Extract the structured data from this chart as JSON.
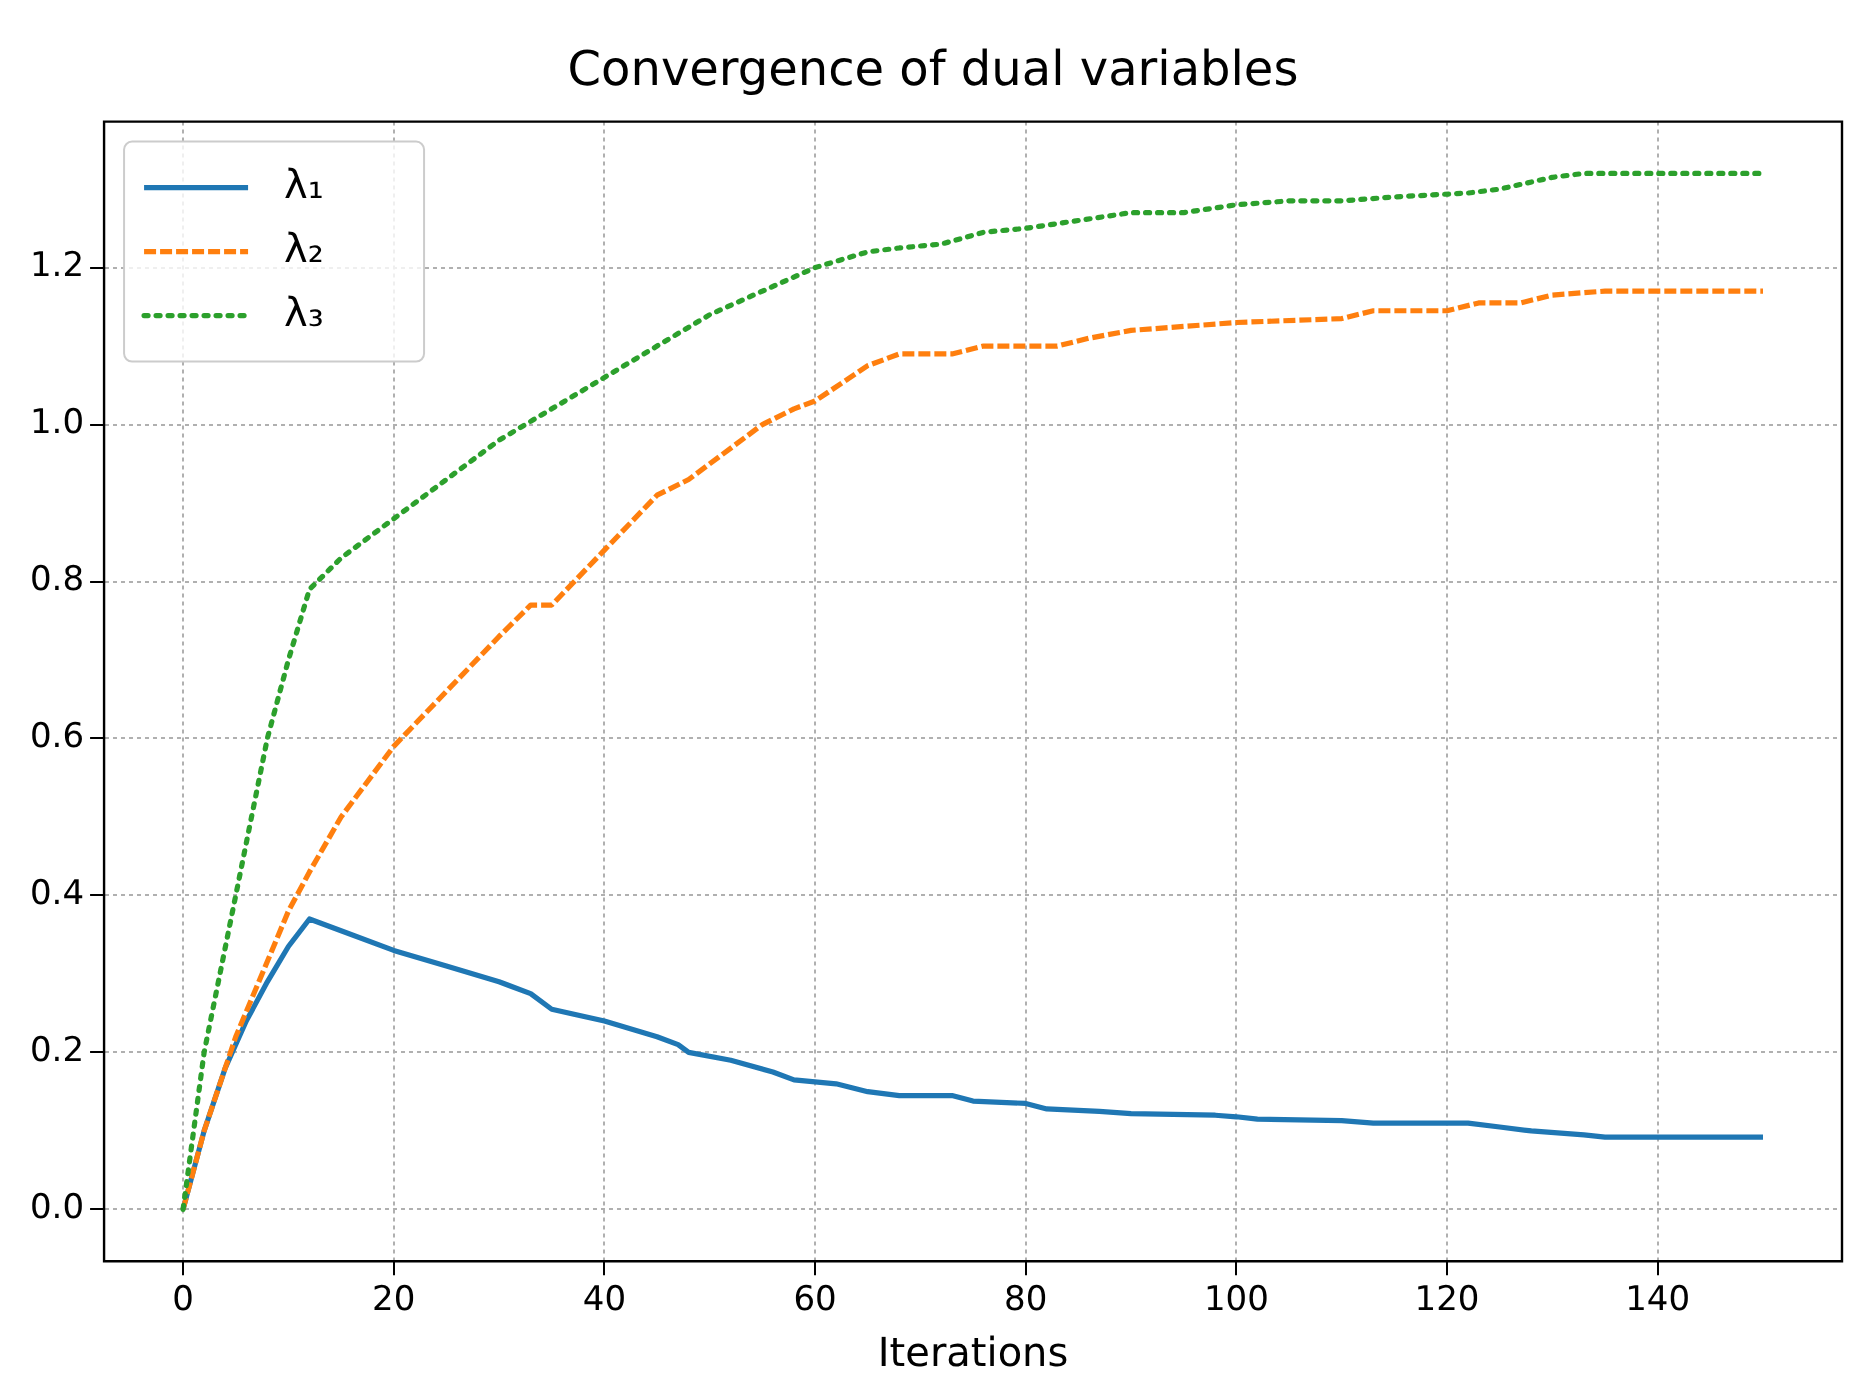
{
  "chart_data": {
    "type": "line",
    "title": "Convergence of dual variables",
    "xlabel": "Iterations",
    "xlim": [
      -7.5,
      157.5
    ],
    "ylim": [
      -0.066,
      1.386
    ],
    "xticks": [
      0,
      20,
      40,
      60,
      80,
      100,
      120,
      140
    ],
    "yticks": [
      {
        "value": 0,
        "label": "0.0"
      },
      {
        "value": 0.2,
        "label": "0.2"
      },
      {
        "value": 0.4,
        "label": "0.4"
      },
      {
        "value": 0.6,
        "label": "0.6"
      },
      {
        "value": 0.8,
        "label": "0.8"
      },
      {
        "value": 1,
        "label": "1.0"
      },
      {
        "value": 1.2,
        "label": "1.2"
      }
    ],
    "grid": true,
    "legend": "top left",
    "marker": "none",
    "series": [
      {
        "name": "λ₁",
        "color": "#1f77b4",
        "line_style": "solid",
        "x": [
          0,
          2,
          4,
          6,
          8,
          10,
          12,
          15,
          20,
          25,
          30,
          33,
          35,
          40,
          45,
          47,
          48,
          52,
          56,
          58,
          62,
          65,
          68,
          73,
          75,
          80,
          82,
          87,
          90,
          98,
          100,
          102,
          110,
          113,
          122,
          125,
          128,
          133,
          135,
          150
        ],
        "values": [
          0,
          0.1,
          0.18,
          0.24,
          0.29,
          0.335,
          0.37,
          0.355,
          0.33,
          0.31,
          0.29,
          0.275,
          0.255,
          0.24,
          0.22,
          0.21,
          0.2,
          0.19,
          0.175,
          0.165,
          0.16,
          0.15,
          0.145,
          0.145,
          0.138,
          0.135,
          0.128,
          0.125,
          0.122,
          0.12,
          0.118,
          0.115,
          0.113,
          0.11,
          0.11,
          0.105,
          0.1,
          0.095,
          0.092,
          0.092
        ]
      },
      {
        "name": "λ₂",
        "color": "#ff7f0e",
        "line_style": "dashed",
        "x": [
          0,
          2,
          5,
          10,
          12,
          15,
          20,
          25,
          30,
          33,
          35,
          40,
          45,
          48,
          55,
          58,
          60,
          65,
          68,
          73,
          76,
          83,
          86,
          90,
          95,
          100,
          110,
          113,
          120,
          123,
          127,
          130,
          135,
          150
        ],
        "values": [
          0,
          0.1,
          0.22,
          0.38,
          0.43,
          0.5,
          0.59,
          0.66,
          0.73,
          0.77,
          0.77,
          0.84,
          0.91,
          0.93,
          1.0,
          1.02,
          1.03,
          1.075,
          1.09,
          1.09,
          1.1,
          1.1,
          1.11,
          1.12,
          1.125,
          1.13,
          1.135,
          1.145,
          1.145,
          1.155,
          1.155,
          1.165,
          1.17,
          1.17
        ]
      },
      {
        "name": "λ₃",
        "color": "#2ca02c",
        "line_style": "dotted",
        "x": [
          0,
          2,
          5,
          8,
          10,
          12,
          15,
          20,
          25,
          30,
          35,
          40,
          45,
          50,
          55,
          60,
          65,
          68,
          72,
          76,
          80,
          85,
          90,
          95,
          100,
          105,
          110,
          115,
          122,
          125,
          130,
          133,
          150
        ],
        "values": [
          0,
          0.2,
          0.4,
          0.6,
          0.7,
          0.79,
          0.83,
          0.88,
          0.93,
          0.98,
          1.02,
          1.06,
          1.1,
          1.14,
          1.17,
          1.2,
          1.22,
          1.225,
          1.23,
          1.245,
          1.25,
          1.26,
          1.27,
          1.27,
          1.28,
          1.285,
          1.285,
          1.29,
          1.295,
          1.3,
          1.315,
          1.32,
          1.32
        ]
      }
    ]
  }
}
